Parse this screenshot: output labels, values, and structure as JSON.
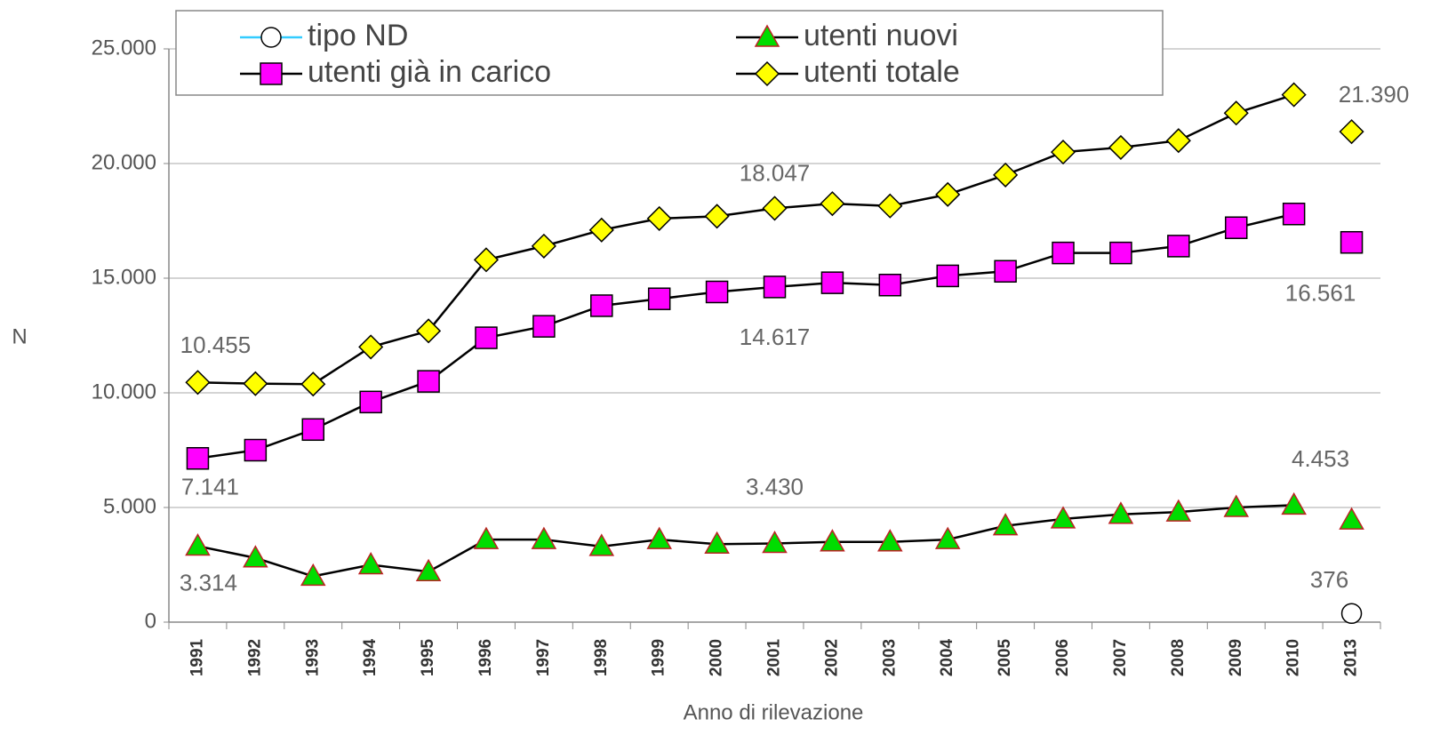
{
  "chart_data": {
    "type": "line",
    "x_label": "Anno di rilevazione",
    "y_label": "N",
    "categories": [
      "1991",
      "1992",
      "1993",
      "1994",
      "1995",
      "1996",
      "1997",
      "1998",
      "1999",
      "2000",
      "2001",
      "2002",
      "2003",
      "2004",
      "2005",
      "2006",
      "2007",
      "2008",
      "2009",
      "2010",
      "2013"
    ],
    "ylim": [
      0,
      25000
    ],
    "yticks": [
      0,
      {
        "value": 5000,
        "label": "5.000"
      },
      {
        "value": 10000,
        "label": "10.000"
      },
      {
        "value": 15000,
        "label": "15.000"
      },
      {
        "value": 20000,
        "label": "20.000"
      },
      {
        "value": 25000,
        "label": "25.000"
      }
    ],
    "grid": true,
    "legend": "top",
    "series": [
      {
        "name": "tipo ND",
        "color": "#33ccff",
        "marker": "circle",
        "marker_color": "#ffffff",
        "values": [
          null,
          null,
          null,
          null,
          null,
          null,
          null,
          null,
          null,
          null,
          null,
          null,
          null,
          null,
          null,
          null,
          null,
          null,
          null,
          null,
          376
        ],
        "value_labels": [
          null,
          null,
          null,
          null,
          null,
          null,
          null,
          null,
          null,
          null,
          null,
          null,
          null,
          null,
          null,
          null,
          null,
          null,
          null,
          null,
          "376"
        ]
      },
      {
        "name": "utenti nuovi",
        "color": "#000000",
        "marker": "triangle",
        "marker_color": "#00dd00",
        "values": [
          3314,
          2800,
          2000,
          2500,
          2200,
          3600,
          3600,
          3300,
          3600,
          3400,
          3430,
          3500,
          3500,
          3600,
          4200,
          4500,
          4700,
          4800,
          5000,
          5100,
          4453
        ],
        "value_labels": [
          "3.314",
          null,
          null,
          null,
          null,
          null,
          null,
          null,
          null,
          null,
          "3.430",
          null,
          null,
          null,
          null,
          null,
          null,
          null,
          null,
          null,
          "4.453"
        ]
      },
      {
        "name": "utenti già in carico",
        "color": "#000000",
        "marker": "square",
        "marker_color": "#ff00ff",
        "values": [
          7141,
          7500,
          8400,
          9600,
          10500,
          12400,
          12900,
          13800,
          14100,
          14400,
          14617,
          14800,
          14700,
          15100,
          15300,
          16100,
          16100,
          16400,
          17200,
          17800,
          16561
        ],
        "value_labels": [
          "7.141",
          null,
          null,
          null,
          null,
          null,
          null,
          null,
          null,
          null,
          "14.617",
          null,
          null,
          null,
          null,
          null,
          null,
          null,
          null,
          null,
          "16.561"
        ]
      },
      {
        "name": "utenti totale",
        "color": "#000000",
        "marker": "diamond",
        "marker_color": "#ffff00",
        "values": [
          10455,
          10400,
          10380,
          12000,
          12700,
          15800,
          16400,
          17100,
          17600,
          17700,
          18047,
          18250,
          18150,
          18650,
          19500,
          20500,
          20700,
          21000,
          22200,
          23000,
          21390
        ],
        "value_labels": [
          "10.455",
          null,
          null,
          null,
          null,
          null,
          null,
          null,
          null,
          null,
          "18.047",
          null,
          null,
          null,
          null,
          null,
          null,
          null,
          null,
          null,
          "21.390"
        ]
      }
    ]
  }
}
